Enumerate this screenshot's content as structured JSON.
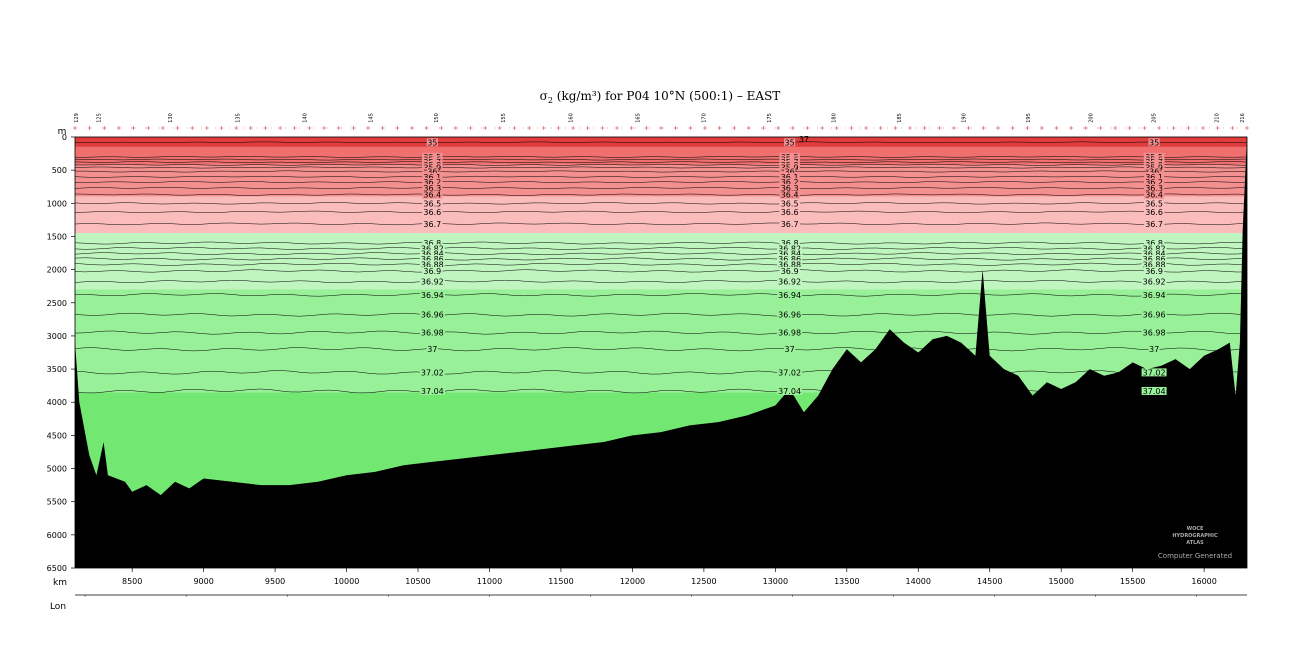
{
  "chart_data": {
    "type": "heatmap",
    "title": "σ₂ (kg/m³) for P04 10°N (500:1) – EAST",
    "title_parts": {
      "symbol": "σ",
      "sub": "2",
      "rest": " (kg/m³) for P04 10°N (500:1) – EAST"
    },
    "xlabel": "km",
    "ylabel": "m",
    "lonlabel": "Lon",
    "xlim": [
      8100,
      16300
    ],
    "ylim": [
      6500,
      0
    ],
    "lonlim": [
      -159.9,
      -171.5
    ],
    "x_ticks": [
      8500,
      9000,
      9500,
      10000,
      10500,
      11000,
      11500,
      12000,
      12500,
      13000,
      13500,
      14000,
      14500,
      15000,
      15500,
      16000
    ],
    "y_ticks": [
      0,
      500,
      1000,
      1500,
      2000,
      2500,
      3000,
      3500,
      4000,
      4500,
      5000,
      5500,
      6000,
      6500
    ],
    "lon_ticks": [
      -155,
      -150,
      -145,
      -140,
      -135,
      -130,
      -125,
      -120,
      -115,
      -110,
      -105,
      -100,
      -95,
      -90
    ],
    "station_labels": [
      {
        "km": 8120,
        "label": "129"
      },
      {
        "km": 8280,
        "label": "125"
      },
      {
        "km": 8780,
        "label": "130"
      },
      {
        "km": 9250,
        "label": "135"
      },
      {
        "km": 9720,
        "label": "140"
      },
      {
        "km": 10180,
        "label": "145"
      },
      {
        "km": 10640,
        "label": "150"
      },
      {
        "km": 11110,
        "label": "155"
      },
      {
        "km": 11580,
        "label": "160"
      },
      {
        "km": 12050,
        "label": "165"
      },
      {
        "km": 12510,
        "label": "170"
      },
      {
        "km": 12970,
        "label": "175"
      },
      {
        "km": 13420,
        "label": "180"
      },
      {
        "km": 13880,
        "label": "185"
      },
      {
        "km": 14330,
        "label": "190"
      },
      {
        "km": 14780,
        "label": "195"
      },
      {
        "km": 15220,
        "label": "200"
      },
      {
        "km": 15660,
        "label": "205"
      },
      {
        "km": 16100,
        "label": "210"
      },
      {
        "km": 16280,
        "label": "216"
      }
    ],
    "contours": [
      {
        "level": "35",
        "depth": 80
      },
      {
        "level": "35.5",
        "depth": 300
      },
      {
        "level": "35.6",
        "depth": 340
      },
      {
        "level": "35.7",
        "depth": 380
      },
      {
        "level": "35.8",
        "depth": 420
      },
      {
        "level": "35.9",
        "depth": 460
      },
      {
        "level": "36",
        "depth": 520
      },
      {
        "level": "36.1",
        "depth": 600
      },
      {
        "level": "36.2",
        "depth": 680
      },
      {
        "level": "36.3",
        "depth": 770
      },
      {
        "level": "36.4",
        "depth": 870
      },
      {
        "level": "36.5",
        "depth": 1000
      },
      {
        "level": "36.6",
        "depth": 1130
      },
      {
        "level": "36.7",
        "depth": 1310
      },
      {
        "level": "36.8",
        "depth": 1600
      },
      {
        "level": "36.82",
        "depth": 1680
      },
      {
        "level": "36.84",
        "depth": 1760
      },
      {
        "level": "36.86",
        "depth": 1840
      },
      {
        "level": "36.88",
        "depth": 1920
      },
      {
        "level": "36.9",
        "depth": 2020
      },
      {
        "level": "36.92",
        "depth": 2180
      },
      {
        "level": "36.94",
        "depth": 2380
      },
      {
        "level": "36.96",
        "depth": 2680
      },
      {
        "level": "36.98",
        "depth": 2950
      },
      {
        "level": "37",
        "depth": 3200
      },
      {
        "level": "37.02",
        "depth": 3550
      },
      {
        "level": "37.04",
        "depth": 3830
      }
    ],
    "contour_label_columns_km": [
      10600,
      13100,
      15650
    ],
    "color_bands": [
      {
        "from": 0,
        "to": 150,
        "color": "#e03c3c"
      },
      {
        "from": 150,
        "to": 420,
        "color": "#f07070"
      },
      {
        "from": 420,
        "to": 900,
        "color": "#f59090"
      },
      {
        "from": 900,
        "to": 1450,
        "color": "#fbbcbc"
      },
      {
        "from": 1450,
        "to": 2300,
        "color": "#bff5bf"
      },
      {
        "from": 2300,
        "to": 3850,
        "color": "#98f098"
      },
      {
        "from": 3850,
        "to": 6500,
        "color": "#72e872"
      }
    ],
    "bathymetry": [
      [
        8100,
        3100
      ],
      [
        8130,
        4000
      ],
      [
        8200,
        4800
      ],
      [
        8250,
        5100
      ],
      [
        8300,
        4600
      ],
      [
        8330,
        5100
      ],
      [
        8450,
        5200
      ],
      [
        8500,
        5350
      ],
      [
        8600,
        5250
      ],
      [
        8700,
        5400
      ],
      [
        8800,
        5200
      ],
      [
        8900,
        5300
      ],
      [
        9000,
        5150
      ],
      [
        9200,
        5200
      ],
      [
        9400,
        5250
      ],
      [
        9600,
        5250
      ],
      [
        9800,
        5200
      ],
      [
        10000,
        5100
      ],
      [
        10200,
        5050
      ],
      [
        10400,
        4950
      ],
      [
        10600,
        4900
      ],
      [
        10800,
        4850
      ],
      [
        11000,
        4800
      ],
      [
        11200,
        4750
      ],
      [
        11400,
        4700
      ],
      [
        11600,
        4650
      ],
      [
        11800,
        4600
      ],
      [
        12000,
        4500
      ],
      [
        12200,
        4450
      ],
      [
        12400,
        4350
      ],
      [
        12600,
        4300
      ],
      [
        12800,
        4200
      ],
      [
        13000,
        4050
      ],
      [
        13100,
        3800
      ],
      [
        13200,
        4150
      ],
      [
        13300,
        3900
      ],
      [
        13400,
        3500
      ],
      [
        13500,
        3200
      ],
      [
        13600,
        3400
      ],
      [
        13700,
        3200
      ],
      [
        13800,
        2900
      ],
      [
        13900,
        3100
      ],
      [
        14000,
        3250
      ],
      [
        14100,
        3050
      ],
      [
        14200,
        3000
      ],
      [
        14300,
        3100
      ],
      [
        14400,
        3300
      ],
      [
        14450,
        2000
      ],
      [
        14500,
        3300
      ],
      [
        14600,
        3500
      ],
      [
        14700,
        3600
      ],
      [
        14800,
        3900
      ],
      [
        14900,
        3700
      ],
      [
        15000,
        3800
      ],
      [
        15100,
        3700
      ],
      [
        15200,
        3500
      ],
      [
        15300,
        3600
      ],
      [
        15400,
        3550
      ],
      [
        15500,
        3400
      ],
      [
        15600,
        3500
      ],
      [
        15700,
        3450
      ],
      [
        15800,
        3350
      ],
      [
        15900,
        3500
      ],
      [
        16000,
        3300
      ],
      [
        16100,
        3200
      ],
      [
        16180,
        3100
      ],
      [
        16220,
        3900
      ],
      [
        16250,
        3100
      ],
      [
        16270,
        1400
      ],
      [
        16300,
        0
      ]
    ],
    "extra_labels": [
      {
        "km": 13200,
        "depth": 30,
        "text": "37"
      }
    ],
    "watermark": [
      "WOCE",
      "HYDROGRAPHIC",
      "ATLAS"
    ],
    "footer_note": "Computer Generated"
  }
}
